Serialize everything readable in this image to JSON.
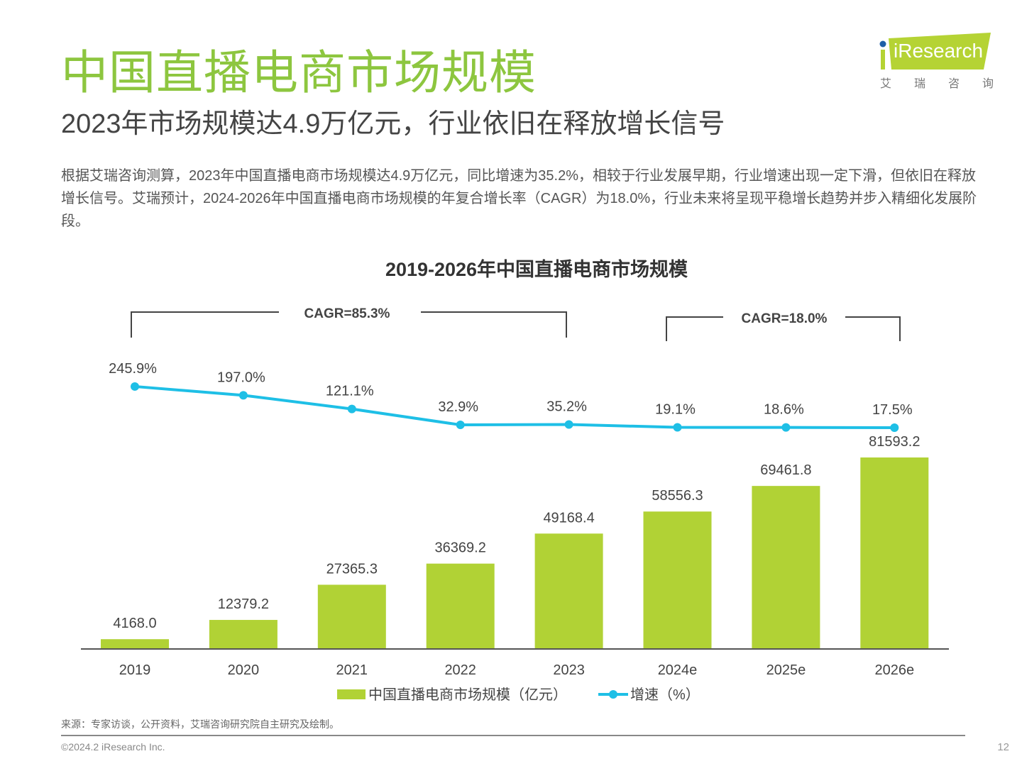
{
  "header": {
    "title": "中国直播电商市场规模",
    "subtitle": "2023年市场规模达4.9万亿元，行业依旧在释放增长信号",
    "body": "根据艾瑞咨询测算，2023年中国直播电商市场规模达4.9万亿元，同比增速为35.2%，相较于行业发展早期，行业增速出现一定下滑，但依旧在释放增长信号。艾瑞预计，2024-2026年中国直播电商市场规模的年复合增长率（CAGR）为18.0%，行业未来将呈现平稳增长趋势并步入精细化发展阶段。"
  },
  "logo": {
    "text": "iResearch",
    "cn": [
      "艾",
      "瑞",
      "咨",
      "询"
    ]
  },
  "colors": {
    "title": "#8dc63f",
    "bar": "#b1d235",
    "line": "#1ebfe6"
  },
  "chart_data": {
    "type": "bar+line",
    "title": "2019-2026年中国直播电商市场规模",
    "categories": [
      "2019",
      "2020",
      "2021",
      "2022",
      "2023",
      "2024e",
      "2025e",
      "2026e"
    ],
    "series": [
      {
        "name": "中国直播电商市场规模（亿元）",
        "type": "bar",
        "values": [
          4168.0,
          12379.2,
          27365.3,
          36369.2,
          49168.4,
          58556.3,
          69461.8,
          81593.2
        ]
      },
      {
        "name": "增速（%）",
        "type": "line",
        "values": [
          245.9,
          197.0,
          121.1,
          32.9,
          35.2,
          19.1,
          18.6,
          17.5
        ]
      }
    ],
    "annotations": [
      {
        "text": "CAGR=85.3%",
        "from": "2019",
        "to": "2023"
      },
      {
        "text": "CAGR=18.0%",
        "from": "2024e",
        "to": "2026e"
      }
    ],
    "legend": "bottom",
    "grid": false
  },
  "footer": {
    "source": "来源：专家访谈，公开资料，艾瑞咨询研究院自主研究及绘制。",
    "copyright": "©2024.2 iResearch Inc.",
    "page": "12"
  }
}
